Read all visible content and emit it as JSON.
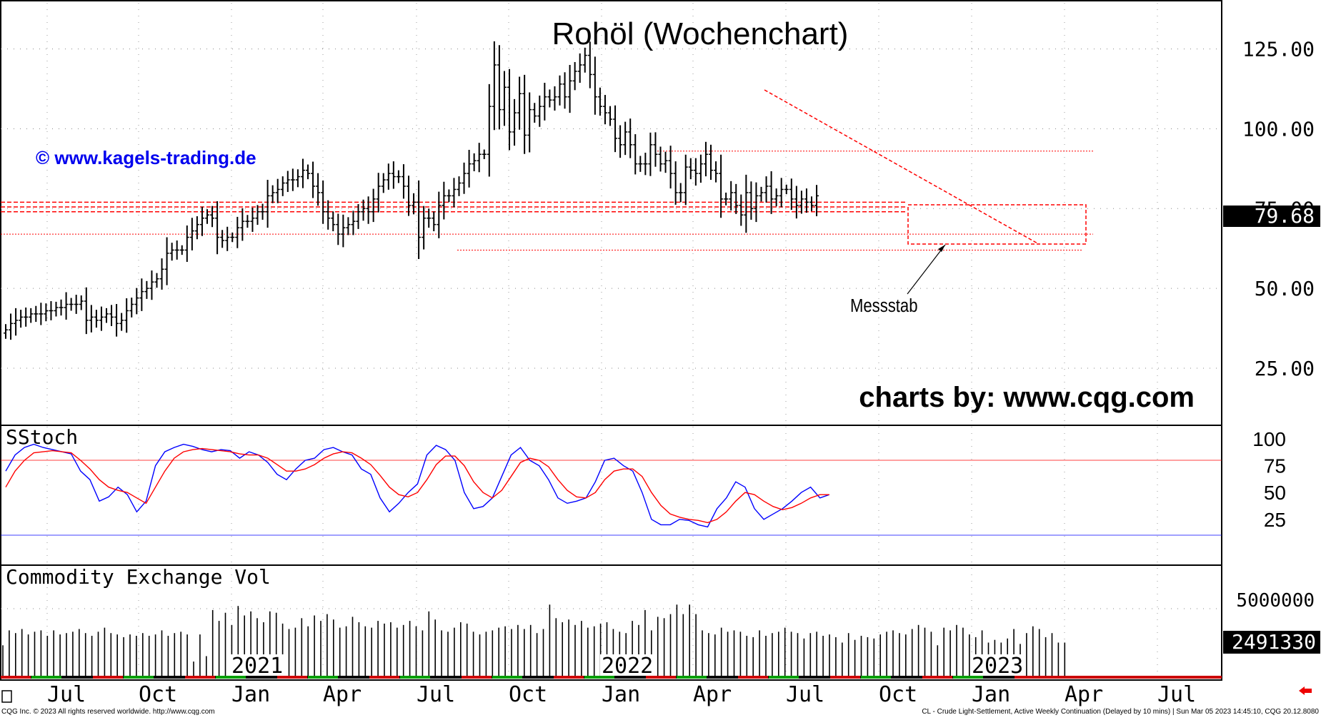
{
  "chart_data": [
    {
      "type": "ohlc",
      "title": "Rohöl (Wochenchart)",
      "watermark": "© www.kagels-trading.de",
      "credit": "charts by: www.cqg.com",
      "annotation": "Messstab",
      "last_value": "79.68",
      "y_ticks": [
        "125.00",
        "100.00",
        "75.00",
        "50.00",
        "25.00"
      ],
      "y_tick_values": [
        125,
        100,
        75,
        50,
        25
      ],
      "ylim": [
        8,
        139
      ],
      "grid": true,
      "series_colors": {
        "bars": "#000000",
        "lines": "#ff0000"
      },
      "close": [
        37,
        39,
        40,
        41,
        41,
        42,
        42,
        42,
        43,
        43,
        44,
        44,
        45,
        45,
        45,
        46,
        40,
        41,
        40,
        41,
        42,
        41,
        39,
        40,
        43,
        45,
        47,
        49,
        50,
        52,
        53,
        56,
        61,
        62,
        62,
        62,
        66,
        68,
        70,
        72,
        73,
        72,
        66,
        65,
        66,
        66,
        69,
        71,
        71,
        72,
        74,
        74,
        79,
        80,
        81,
        83,
        84,
        84,
        85,
        87,
        86,
        82,
        80,
        74,
        72,
        70,
        67,
        69,
        70,
        71,
        74,
        75,
        74,
        78,
        82,
        84,
        86,
        85,
        85,
        82,
        76,
        77,
        66,
        72,
        72,
        70,
        76,
        79,
        79,
        81,
        83,
        86,
        89,
        90,
        92,
        92,
        107,
        120,
        106,
        113,
        99,
        105,
        111,
        98,
        106,
        104,
        107,
        110,
        109,
        110,
        114,
        110,
        115,
        118,
        120,
        123,
        117,
        110,
        107,
        105,
        103,
        97,
        95,
        99,
        95,
        89,
        89,
        89,
        95,
        92,
        89,
        90,
        86,
        80,
        80,
        88,
        87,
        86,
        89,
        92,
        87,
        86,
        78,
        78,
        80,
        76,
        73,
        80,
        75,
        79,
        80,
        82,
        78,
        79,
        81,
        81,
        78,
        76,
        78,
        77,
        76,
        79
      ],
      "x_labels": [
        "Jul",
        "Oct",
        "Jan",
        "Apr",
        "Jul",
        "Oct",
        "Jan",
        "Apr",
        "Jul",
        "Oct",
        "Jan",
        "Apr",
        "Jul"
      ],
      "year_labels": [
        "2021",
        "2022",
        "2023"
      ]
    },
    {
      "type": "line",
      "title": "SStoch",
      "y_ticks": [
        "100",
        "75",
        "50",
        "25"
      ],
      "y_tick_values": [
        100,
        75,
        50,
        25
      ],
      "ylim": [
        -15,
        110
      ],
      "series": [
        {
          "color": "#0000ff",
          "values": [
            70,
            85,
            92,
            95,
            92,
            90,
            88,
            86,
            70,
            62,
            42,
            46,
            55,
            48,
            32,
            42,
            75,
            88,
            92,
            95,
            93,
            90,
            88,
            90,
            89,
            82,
            88,
            85,
            78,
            67,
            62,
            72,
            80,
            82,
            90,
            92,
            88,
            85,
            72,
            67,
            45,
            32,
            40,
            50,
            58,
            85,
            94,
            90,
            80,
            50,
            35,
            37,
            45,
            65,
            85,
            92,
            80,
            75,
            62,
            45,
            40,
            42,
            45,
            60,
            80,
            82,
            75,
            70,
            50,
            25,
            20,
            20,
            25,
            24,
            20,
            18,
            35,
            45,
            60,
            55,
            35,
            25,
            30,
            35,
            42,
            50,
            55,
            45,
            48
          ]
        },
        {
          "color": "#ff0000",
          "values": [
            55,
            70,
            80,
            87,
            88,
            89,
            88,
            87,
            80,
            72,
            62,
            55,
            52,
            50,
            45,
            40,
            55,
            70,
            82,
            88,
            90,
            91,
            90,
            89,
            88,
            86,
            85,
            85,
            82,
            76,
            70,
            70,
            72,
            76,
            82,
            86,
            88,
            87,
            82,
            76,
            66,
            55,
            48,
            46,
            50,
            62,
            76,
            84,
            84,
            75,
            60,
            50,
            45,
            52,
            65,
            78,
            82,
            80,
            74,
            62,
            52,
            46,
            45,
            50,
            62,
            70,
            72,
            72,
            65,
            50,
            38,
            30,
            27,
            25,
            24,
            22,
            25,
            32,
            42,
            50,
            48,
            42,
            37,
            34,
            36,
            40,
            45,
            48,
            48
          ]
        }
      ]
    },
    {
      "type": "bar",
      "title": "Commodity Exchange Vol",
      "y_ticks": [
        "5000000"
      ],
      "y_tick_values": [
        5000000
      ],
      "ylim": [
        0,
        8000000
      ],
      "last_value": "2491330",
      "values": [
        2300000,
        3400000,
        3200000,
        3500000,
        3100000,
        3300000,
        3400000,
        3000000,
        3400000,
        3100000,
        3200000,
        3300000,
        3500000,
        3200000,
        3000000,
        3300000,
        3600000,
        3200000,
        3100000,
        2900000,
        3100000,
        3000000,
        3200000,
        3000000,
        3100000,
        3400000,
        3000000,
        3200000,
        3300000,
        3100000,
        1100000,
        3100000,
        1500000,
        4900000,
        4100000,
        4700000,
        3800000,
        5200000,
        4500000,
        4800000,
        4300000,
        4000000,
        4800000,
        4700000,
        3900000,
        3500000,
        3600000,
        4300000,
        3700000,
        4500000,
        4100000,
        4600000,
        4200000,
        3600000,
        3700000,
        4400000,
        4000000,
        3700000,
        3600000,
        4100000,
        3900000,
        4000000,
        3600000,
        3800000,
        4100000,
        3700000,
        3400000,
        4800000,
        4200000,
        3400000,
        3300000,
        3600000,
        4000000,
        3900000,
        3300000,
        3100000,
        3300000,
        3400000,
        3600000,
        3700000,
        3500000,
        3800000,
        3500000,
        3800000,
        3200000,
        3500000,
        5300000,
        4300000,
        4000000,
        4200000,
        3800000,
        4100000,
        3600000,
        3700000,
        3900000,
        4000000,
        3500000,
        3300000,
        3200000,
        4100000,
        3800000,
        4900000,
        3400000,
        4400000,
        4300000,
        4600000,
        5300000,
        4600000,
        5300000,
        4600000,
        3400000,
        3200000,
        3100000,
        3600000,
        3300000,
        3400000,
        3300000,
        3000000,
        2900000,
        3400000,
        3000000,
        3200000,
        3300000,
        3600000,
        3300000,
        3200000,
        2800000,
        3200000,
        3300000,
        3000000,
        3100000,
        2900000,
        2500000,
        3200000,
        2700000,
        3000000,
        2900000,
        2800000,
        3100000,
        3300000,
        3400000,
        3200000,
        3100000,
        3500000,
        3800000,
        3600000,
        3300000,
        2300000,
        3600000,
        3400000,
        3800000,
        3600000,
        3100000,
        2900000,
        3400000,
        2500000,
        2700000,
        2500000,
        2800000,
        3500000,
        2400000,
        3200000,
        3700000,
        3500000,
        2900000,
        3200000,
        2500000,
        2500000
      ]
    }
  ],
  "footer": {
    "left": "CQG Inc. © 2023 All rights reserved worldwide. http://www.cqg.com",
    "right": "CL - Crude Light-Settlement, Active Weekly Continuation (Delayed by 10 mins) | Sun Mar 05 2023 14:45:10, CQG 20.12.8080"
  }
}
